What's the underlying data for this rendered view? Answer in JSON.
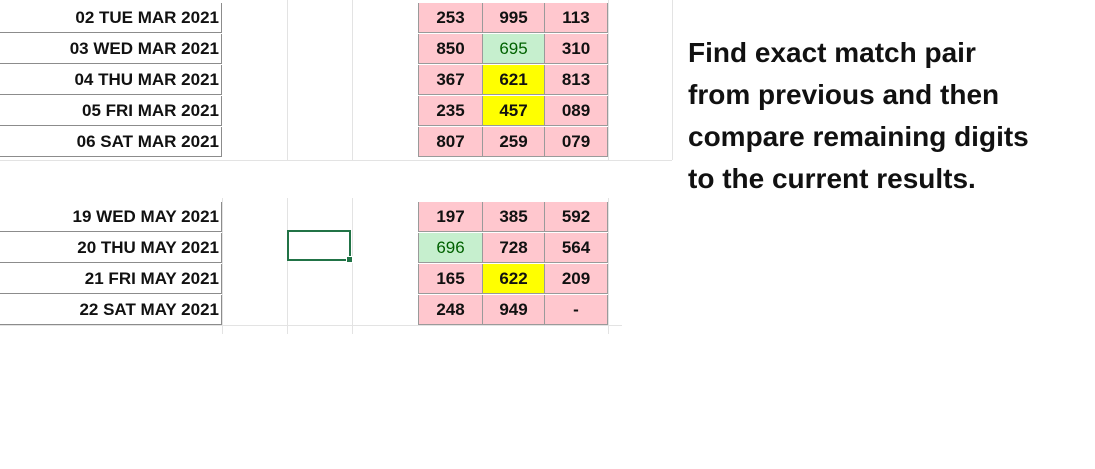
{
  "block1": {
    "rows": [
      {
        "date": "02 TUE MAR 2021",
        "cells": [
          "253",
          "995",
          "113"
        ]
      },
      {
        "date": "03 WED MAR 2021",
        "cells": [
          "850",
          "695",
          "310"
        ]
      },
      {
        "date": "04 THU MAR 2021",
        "cells": [
          "367",
          "621",
          "813"
        ]
      },
      {
        "date": "05 FRI MAR 2021",
        "cells": [
          "235",
          "457",
          "089"
        ]
      },
      {
        "date": "06 SAT MAR 2021",
        "cells": [
          "807",
          "259",
          "079"
        ]
      }
    ]
  },
  "block2": {
    "rows": [
      {
        "date": "19 WED MAY 2021",
        "cells": [
          "197",
          "385",
          "592"
        ]
      },
      {
        "date": "20 THU MAY 2021",
        "cells": [
          "696",
          "728",
          "564"
        ]
      },
      {
        "date": "21 FRI MAY 2021",
        "cells": [
          "165",
          "622",
          "209"
        ]
      },
      {
        "date": "22 SAT MAY 2021",
        "cells": [
          "248",
          "949",
          "-"
        ]
      }
    ]
  },
  "note": {
    "line1": "Find exact match pair",
    "line2": "from previous and then",
    "line3": "compare remaining digits",
    "line4": "to the current results."
  },
  "colors": {
    "pink_fill": "#ffc7ce",
    "green_fill": "#c6efce",
    "green_text": "#006100",
    "yellow_fill": "#ffff00",
    "selection_border": "#217346"
  }
}
